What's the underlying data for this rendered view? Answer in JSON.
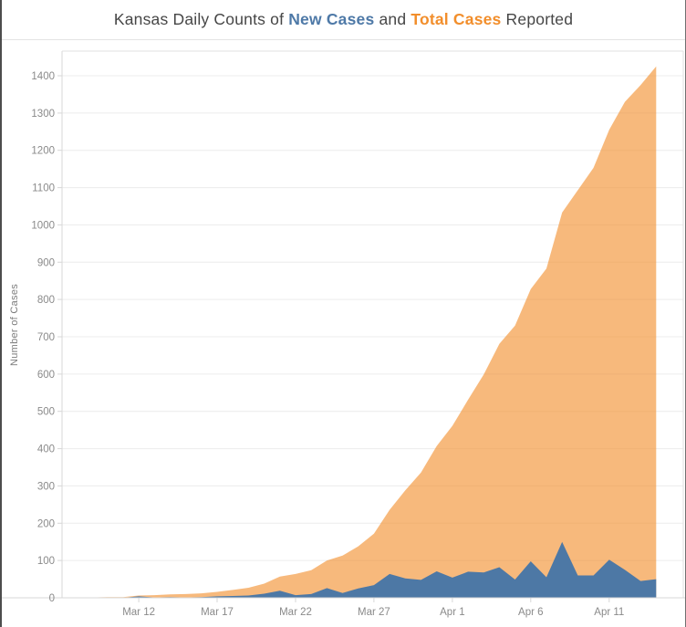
{
  "title": {
    "prefix": "Kansas Daily Counts of ",
    "new_cases": "New Cases",
    "and": " and ",
    "total_cases": "Total Cases",
    "suffix": " Reported"
  },
  "colors": {
    "new_cases_accent": "#4e79a7",
    "total_cases_accent": "#f28e2b",
    "total_area_fill": "rgba(242,142,43,0.62)",
    "new_area_fill": "#4d78a5",
    "title_text": "#464646",
    "axis_text": "#8a8a8a",
    "axis_title_text": "#7c7c7c",
    "gridline": "#ececec",
    "axis_line": "#d7d7d7",
    "pane_border": "#e2e2e2"
  },
  "chart_data": {
    "type": "area",
    "title": "Kansas Daily Counts of New Cases and Total Cases Reported",
    "xlabel": "",
    "ylabel": "Number of Cases",
    "grid": true,
    "legend_position": "inline-in-title",
    "ylim": [
      0,
      1466
    ],
    "y_ticks": [
      0,
      100,
      200,
      300,
      400,
      500,
      600,
      700,
      800,
      900,
      1000,
      1100,
      1200,
      1300,
      1400
    ],
    "x_ticks": [
      {
        "label": "Mar 12",
        "i": 3
      },
      {
        "label": "Mar 17",
        "i": 8
      },
      {
        "label": "Mar 22",
        "i": 13
      },
      {
        "label": "Mar 27",
        "i": 18
      },
      {
        "label": "Apr 1",
        "i": 23
      },
      {
        "label": "Apr 6",
        "i": 28
      },
      {
        "label": "Apr 11",
        "i": 33
      }
    ],
    "x": [
      "Mar 9",
      "Mar 10",
      "Mar 11",
      "Mar 12",
      "Mar 13",
      "Mar 14",
      "Mar 15",
      "Mar 16",
      "Mar 17",
      "Mar 18",
      "Mar 19",
      "Mar 20",
      "Mar 21",
      "Mar 22",
      "Mar 23",
      "Mar 24",
      "Mar 25",
      "Mar 26",
      "Mar 27",
      "Mar 28",
      "Mar 29",
      "Mar 30",
      "Mar 31",
      "Apr 1",
      "Apr 2",
      "Apr 3",
      "Apr 4",
      "Apr 5",
      "Apr 6",
      "Apr 7",
      "Apr 8",
      "Apr 9",
      "Apr 10",
      "Apr 11",
      "Apr 12",
      "Apr 13",
      "Apr 14"
    ],
    "series": [
      {
        "name": "Total Cases",
        "color": "#f28e2b",
        "fill": "rgba(242,142,43,0.62)",
        "values": [
          1,
          2,
          2,
          6,
          7,
          9,
          10,
          12,
          16,
          21,
          27,
          38,
          57,
          64,
          74,
          100,
          113,
          138,
          172,
          236,
          288,
          336,
          407,
          461,
          531,
          599,
          681,
          730,
          828,
          883,
          1033,
          1093,
          1153,
          1255,
          1330,
          1375,
          1425
        ]
      },
      {
        "name": "New Cases",
        "color": "#4e79a7",
        "fill": "#4d78a5",
        "values": [
          1,
          1,
          0,
          4,
          1,
          2,
          1,
          2,
          4,
          5,
          6,
          11,
          19,
          7,
          10,
          26,
          13,
          25,
          34,
          64,
          52,
          48,
          71,
          54,
          70,
          68,
          82,
          49,
          98,
          55,
          150,
          60,
          60,
          102,
          75,
          45,
          50
        ]
      }
    ]
  }
}
